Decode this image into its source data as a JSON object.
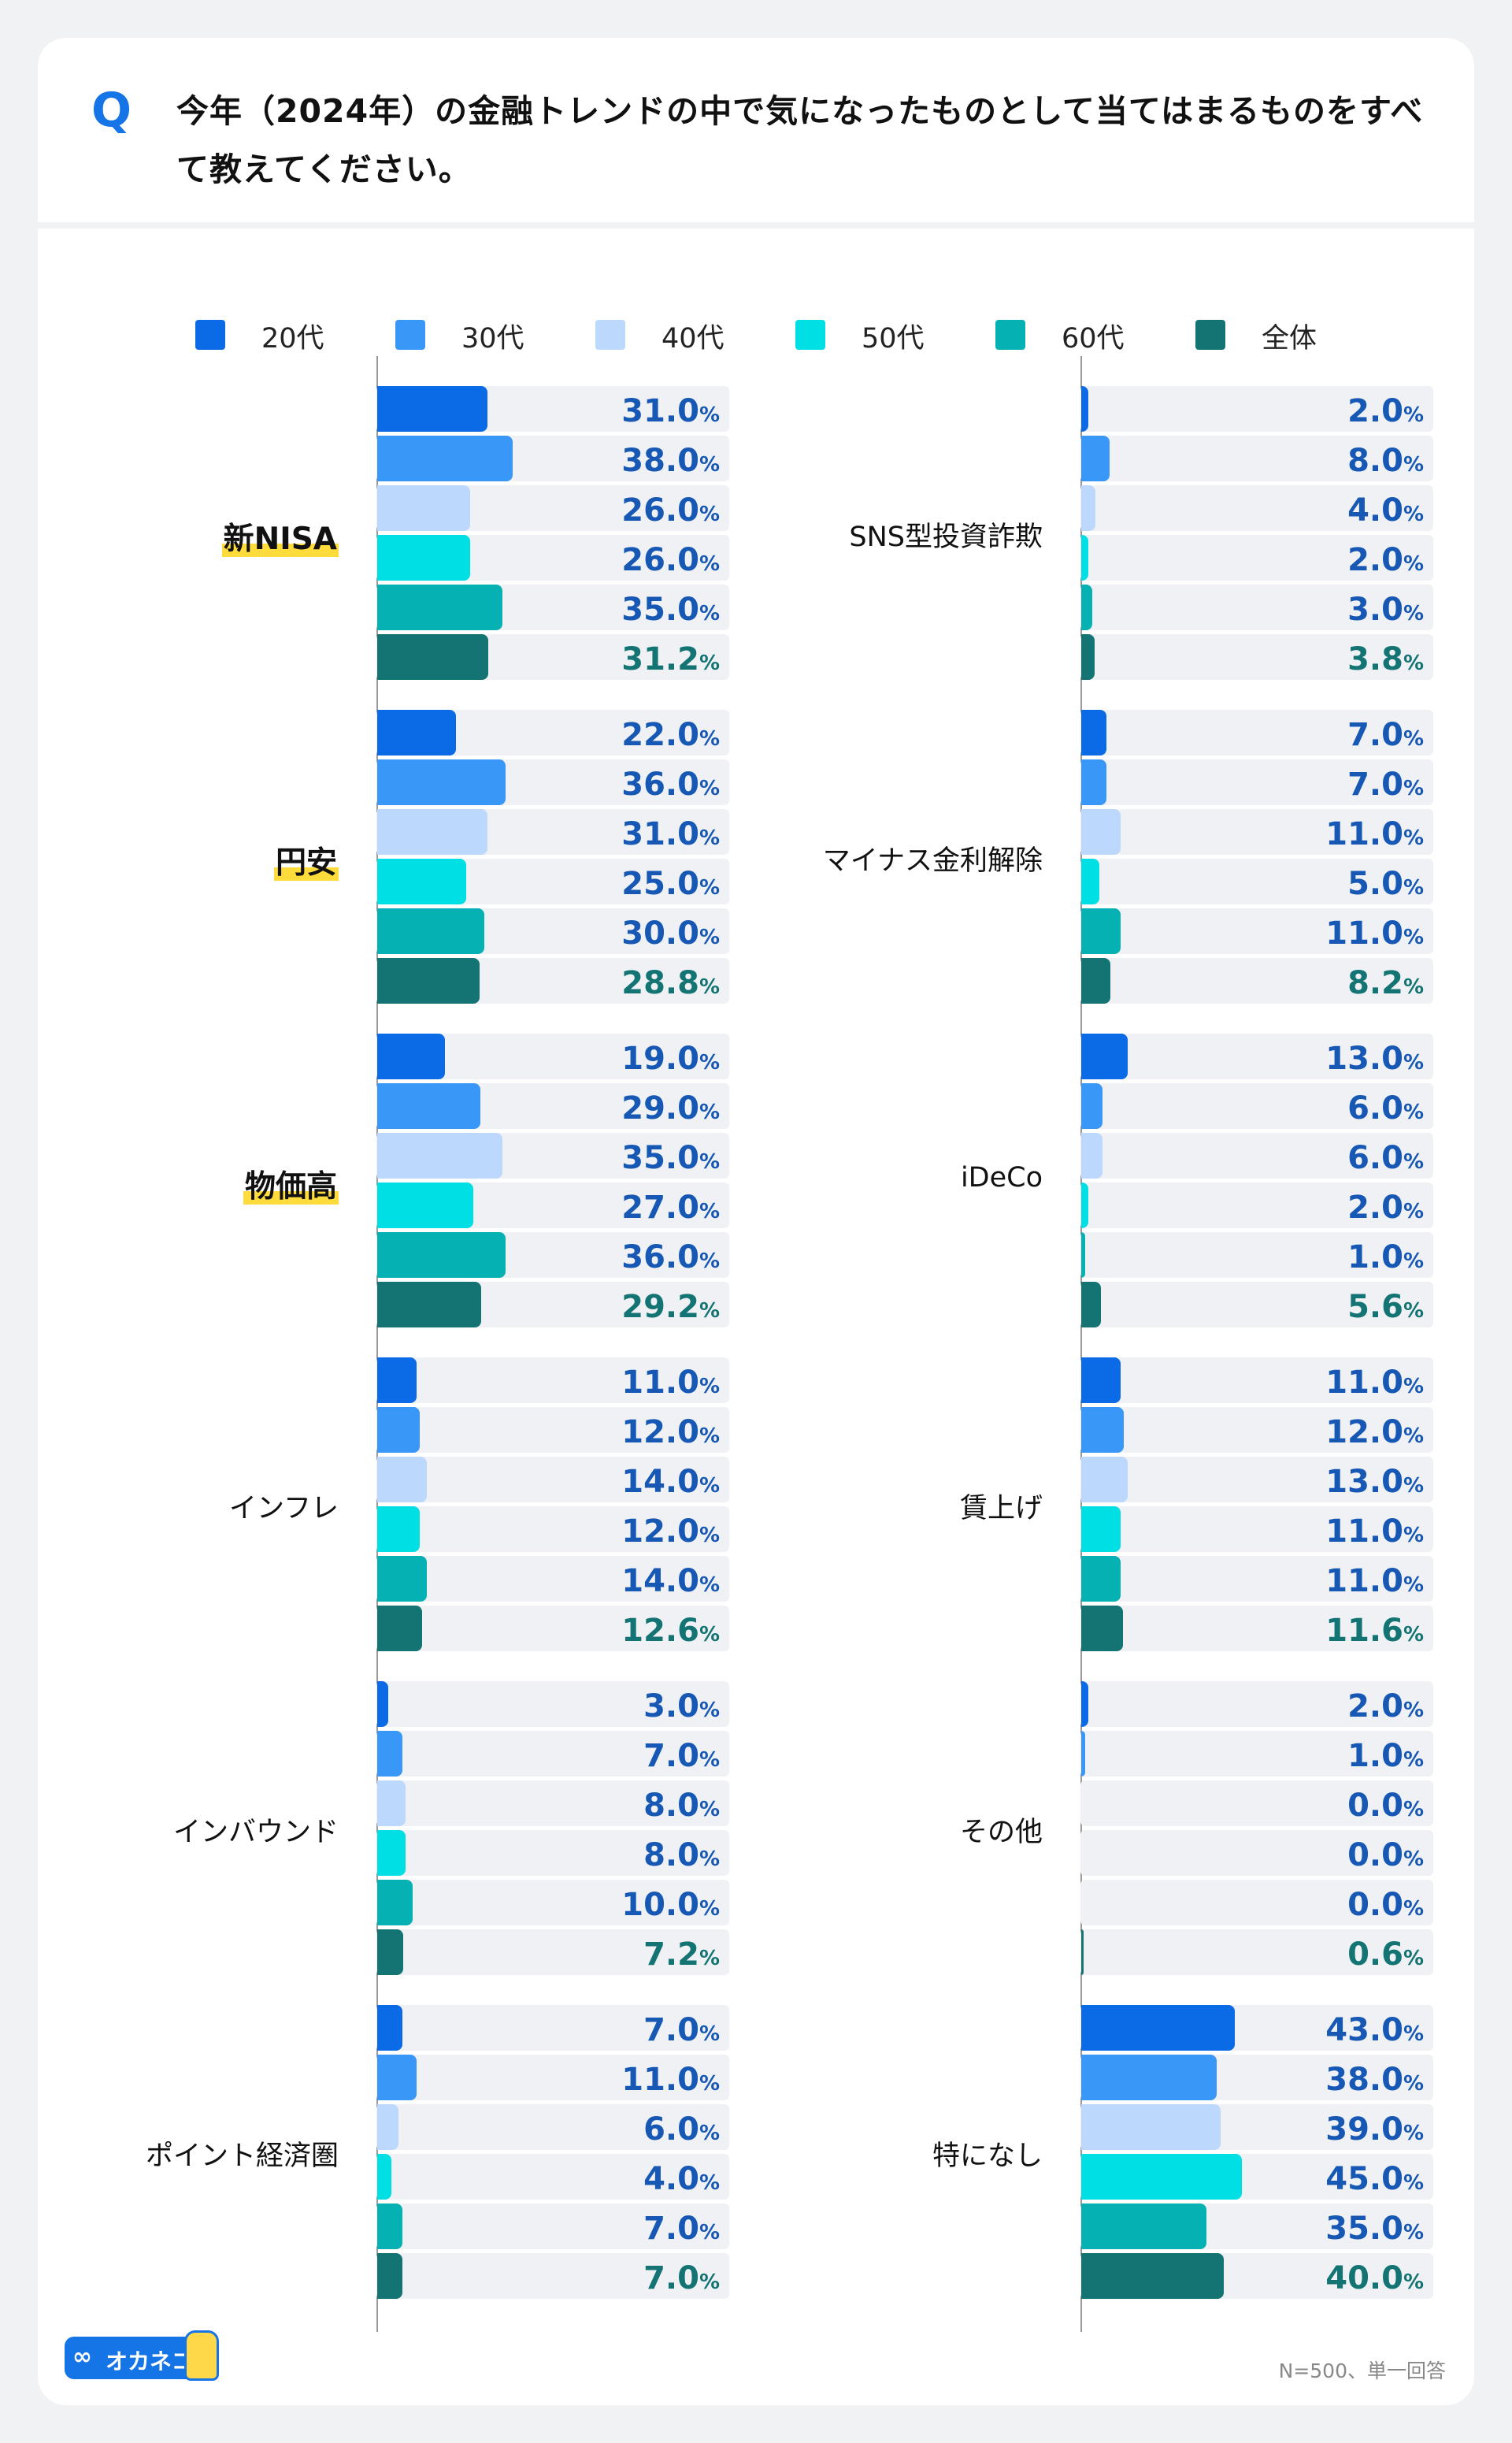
{
  "question": {
    "mark": "Q",
    "text": "今年（2024年）の金融トレンドの中で気になったものとして当てはまるものをすべて教えてください。"
  },
  "colors": {
    "20代": "#0b6be6",
    "30代": "#3897f7",
    "40代": "#bcd9fd",
    "50代": "#00dfe3",
    "60代": "#06b1b3",
    "全体": "#147474",
    "label_blue": "#1658b4",
    "label_teal": "#147474",
    "highlight": "#ffdc3c"
  },
  "legend": [
    "20代",
    "30代",
    "40代",
    "50代",
    "60代",
    "全体"
  ],
  "chart_data": {
    "type": "bar",
    "orientation": "horizontal",
    "unit": "%",
    "xlim": [
      0,
      100
    ],
    "series_names": [
      "20代",
      "30代",
      "40代",
      "50代",
      "60代",
      "全体"
    ],
    "panels": [
      {
        "position": "left",
        "categories": [
          {
            "label": "新NISA",
            "highlight": true,
            "values": [
              31.0,
              38.0,
              26.0,
              26.0,
              35.0,
              31.2
            ]
          },
          {
            "label": "円安",
            "highlight": true,
            "values": [
              22.0,
              36.0,
              31.0,
              25.0,
              30.0,
              28.8
            ]
          },
          {
            "label": "物価高",
            "highlight": true,
            "values": [
              19.0,
              29.0,
              35.0,
              27.0,
              36.0,
              29.2
            ]
          },
          {
            "label": "インフレ",
            "highlight": false,
            "values": [
              11.0,
              12.0,
              14.0,
              12.0,
              14.0,
              12.6
            ]
          },
          {
            "label": "インバウンド",
            "highlight": false,
            "values": [
              3.0,
              7.0,
              8.0,
              8.0,
              10.0,
              7.2
            ]
          },
          {
            "label": "ポイント経済圏",
            "highlight": false,
            "values": [
              7.0,
              11.0,
              6.0,
              4.0,
              7.0,
              7.0
            ]
          }
        ]
      },
      {
        "position": "right",
        "categories": [
          {
            "label": "SNS型投資詐欺",
            "highlight": false,
            "values": [
              2.0,
              8.0,
              4.0,
              2.0,
              3.0,
              3.8
            ]
          },
          {
            "label": "マイナス金利解除",
            "highlight": false,
            "values": [
              7.0,
              7.0,
              11.0,
              5.0,
              11.0,
              8.2
            ]
          },
          {
            "label": "iDeCo",
            "highlight": false,
            "values": [
              13.0,
              6.0,
              6.0,
              2.0,
              1.0,
              5.6
            ]
          },
          {
            "label": "賃上げ",
            "highlight": false,
            "values": [
              11.0,
              12.0,
              13.0,
              11.0,
              11.0,
              11.6
            ]
          },
          {
            "label": "その他",
            "highlight": false,
            "values": [
              2.0,
              1.0,
              0.0,
              0.0,
              0.0,
              0.6
            ]
          },
          {
            "label": "特になし",
            "highlight": false,
            "values": [
              43.0,
              38.0,
              39.0,
              45.0,
              35.0,
              40.0
            ]
          }
        ]
      }
    ]
  },
  "footer": {
    "note": "N=500、単一回答",
    "logo_icon": "∞",
    "logo_text": "オカネコ"
  }
}
